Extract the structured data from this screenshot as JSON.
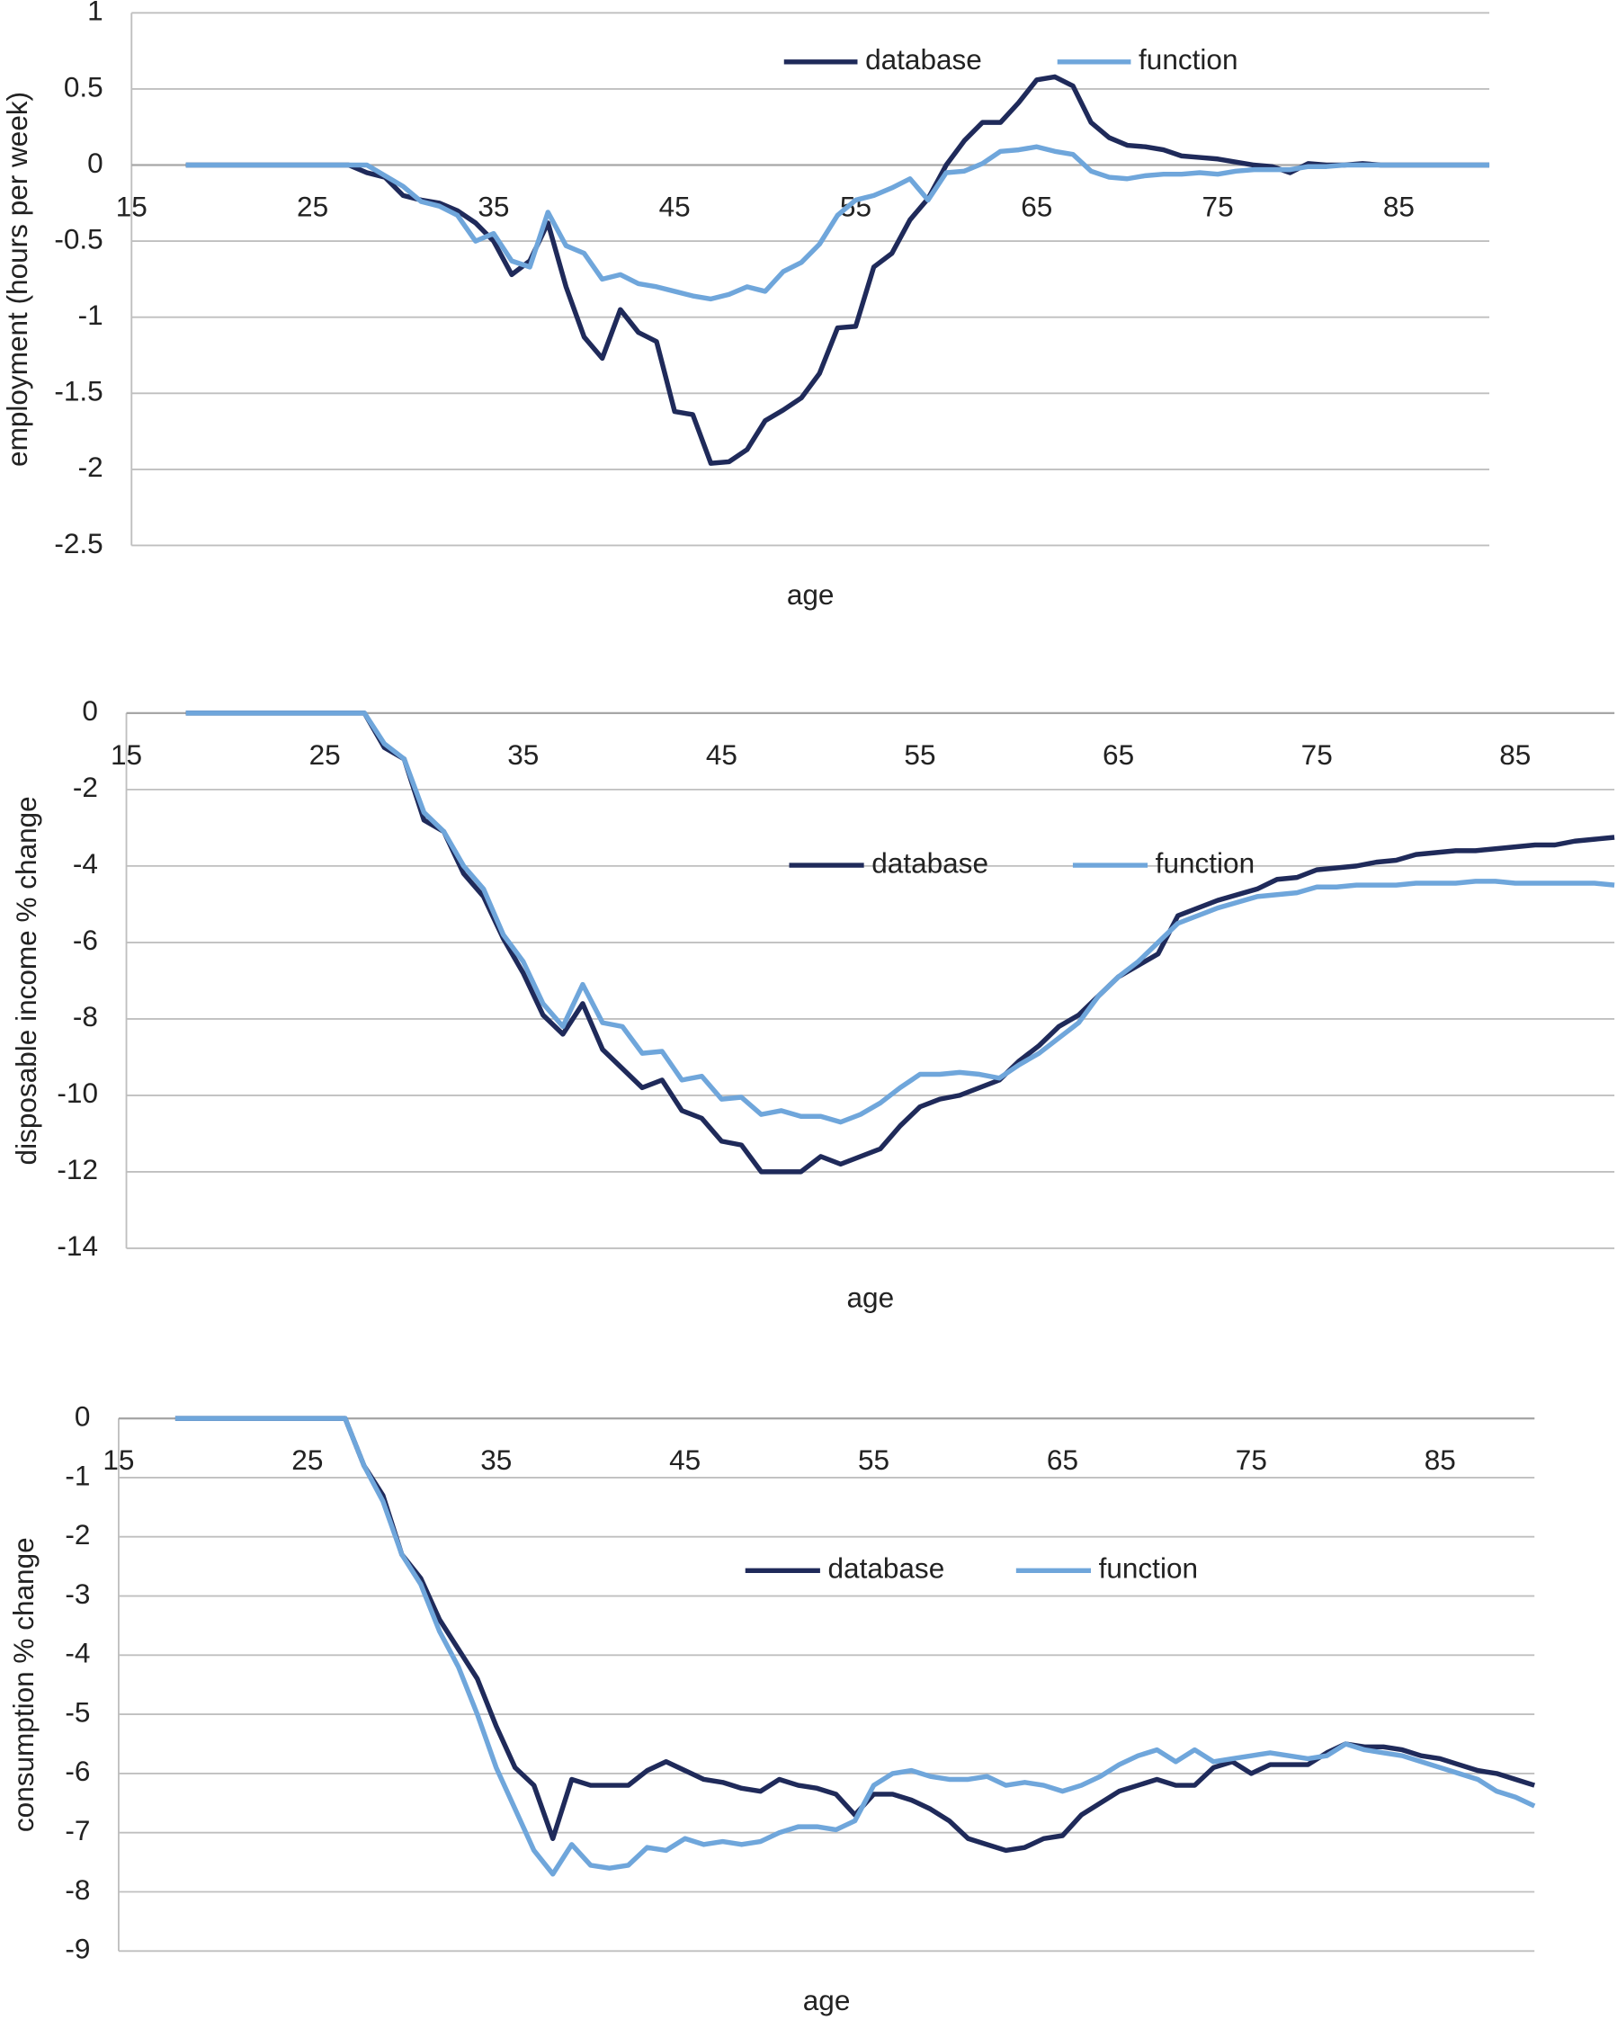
{
  "chart_data": [
    {
      "type": "line",
      "y_label": "employment (hours per week)",
      "x_label": "age",
      "x": [
        18,
        19,
        20,
        21,
        22,
        23,
        24,
        25,
        26,
        27,
        28,
        29,
        30,
        31,
        32,
        33,
        34,
        35,
        36,
        37,
        38,
        39,
        40,
        41,
        42,
        43,
        44,
        45,
        46,
        47,
        48,
        49,
        50,
        51,
        52,
        53,
        54,
        55,
        56,
        57,
        58,
        59,
        60,
        61,
        62,
        63,
        64,
        65,
        66,
        67,
        68,
        69,
        70,
        71,
        72,
        73,
        74,
        75,
        76,
        77,
        78,
        79,
        80,
        81,
        82,
        83,
        84,
        85,
        86,
        87,
        88,
        89,
        90
      ],
      "series": [
        {
          "name": "database",
          "color": "#1f2a5a",
          "values": [
            0,
            0,
            0,
            0,
            0,
            0,
            0,
            0,
            0,
            0,
            -0.05,
            -0.08,
            -0.2,
            -0.23,
            -0.25,
            -0.3,
            -0.38,
            -0.5,
            -0.72,
            -0.63,
            -0.38,
            -0.8,
            -1.13,
            -1.27,
            -0.95,
            -1.1,
            -1.16,
            -1.62,
            -1.64,
            -1.96,
            -1.95,
            -1.87,
            -1.68,
            -1.61,
            -1.53,
            -1.37,
            -1.07,
            -1.06,
            -0.67,
            -0.58,
            -0.36,
            -0.22,
            0,
            0.16,
            0.28,
            0.28,
            0.41,
            0.56,
            0.58,
            0.52,
            0.28,
            0.18,
            0.13,
            0.12,
            0.1,
            0.06,
            0.05,
            0.04,
            0.02,
            0,
            -0.01,
            -0.05,
            0.01,
            0,
            0,
            0.01,
            0,
            0,
            0,
            0,
            0,
            0,
            0
          ]
        },
        {
          "name": "function",
          "color": "#6fa6db",
          "values": [
            0,
            0,
            0,
            0,
            0,
            0,
            0,
            0,
            0,
            0,
            0,
            -0.07,
            -0.14,
            -0.24,
            -0.27,
            -0.33,
            -0.5,
            -0.45,
            -0.63,
            -0.67,
            -0.31,
            -0.53,
            -0.58,
            -0.75,
            -0.72,
            -0.78,
            -0.8,
            -0.83,
            -0.86,
            -0.88,
            -0.85,
            -0.8,
            -0.83,
            -0.7,
            -0.64,
            -0.52,
            -0.33,
            -0.23,
            -0.2,
            -0.15,
            -0.09,
            -0.23,
            -0.05,
            -0.04,
            0.01,
            0.09,
            0.1,
            0.12,
            0.09,
            0.07,
            -0.04,
            -0.08,
            -0.09,
            -0.07,
            -0.06,
            -0.06,
            -0.05,
            -0.06,
            -0.04,
            -0.03,
            -0.03,
            -0.03,
            -0.01,
            -0.01,
            0,
            0,
            0,
            0,
            0,
            0,
            0,
            0,
            0
          ]
        }
      ],
      "xlim": [
        15,
        90
      ],
      "ylim": [
        -2.5,
        1
      ],
      "xticks": [
        15,
        25,
        35,
        45,
        55,
        65,
        75,
        85
      ],
      "yticks": [
        -2.5,
        -2,
        -1.5,
        -1,
        -0.5,
        0,
        0.5,
        1
      ],
      "grid": true
    },
    {
      "type": "line",
      "y_label": "disposable income % change",
      "x_label": "age",
      "x": [
        18,
        19,
        20,
        21,
        22,
        23,
        24,
        25,
        26,
        27,
        28,
        29,
        30,
        31,
        32,
        33,
        34,
        35,
        36,
        37,
        38,
        39,
        40,
        41,
        42,
        43,
        44,
        45,
        46,
        47,
        48,
        49,
        50,
        51,
        52,
        53,
        54,
        55,
        56,
        57,
        58,
        59,
        60,
        61,
        62,
        63,
        64,
        65,
        66,
        67,
        68,
        69,
        70,
        71,
        72,
        73,
        74,
        75,
        76,
        77,
        78,
        79,
        80,
        81,
        82,
        83,
        84,
        85,
        86,
        87,
        88,
        89,
        90
      ],
      "series": [
        {
          "name": "database",
          "color": "#1f2a5a",
          "values": [
            0,
            0,
            0,
            0,
            0,
            0,
            0,
            0,
            0,
            0,
            -0.9,
            -1.2,
            -2.8,
            -3.1,
            -4.2,
            -4.8,
            -5.9,
            -6.8,
            -7.9,
            -8.4,
            -7.6,
            -8.8,
            -9.3,
            -9.8,
            -9.6,
            -10.4,
            -10.6,
            -11.2,
            -11.3,
            -12,
            -12,
            -12,
            -11.6,
            -11.8,
            -11.6,
            -11.4,
            -10.8,
            -10.3,
            -10.1,
            -10,
            -9.8,
            -9.6,
            -9.1,
            -8.7,
            -8.2,
            -7.9,
            -7.4,
            -6.9,
            -6.6,
            -6.3,
            -5.3,
            -5.1,
            -4.9,
            -4.75,
            -4.6,
            -4.35,
            -4.3,
            -4.1,
            -4.05,
            -4,
            -3.9,
            -3.85,
            -3.7,
            -3.65,
            -3.6,
            -3.6,
            -3.55,
            -3.5,
            -3.45,
            -3.45,
            -3.35,
            -3.3,
            -3.25
          ]
        },
        {
          "name": "function",
          "color": "#6fa6db",
          "values": [
            0,
            0,
            0,
            0,
            0,
            0,
            0,
            0,
            0,
            0,
            -0.8,
            -1.2,
            -2.6,
            -3.1,
            -4,
            -4.6,
            -5.8,
            -6.5,
            -7.6,
            -8.2,
            -7.1,
            -8.1,
            -8.2,
            -8.9,
            -8.85,
            -9.6,
            -9.5,
            -10.1,
            -10.05,
            -10.5,
            -10.4,
            -10.55,
            -10.55,
            -10.7,
            -10.5,
            -10.2,
            -9.8,
            -9.45,
            -9.45,
            -9.4,
            -9.45,
            -9.55,
            -9.2,
            -8.9,
            -8.5,
            -8.1,
            -7.4,
            -6.9,
            -6.5,
            -6,
            -5.5,
            -5.3,
            -5.1,
            -4.95,
            -4.8,
            -4.75,
            -4.7,
            -4.55,
            -4.55,
            -4.5,
            -4.5,
            -4.5,
            -4.45,
            -4.45,
            -4.45,
            -4.4,
            -4.4,
            -4.45,
            -4.45,
            -4.45,
            -4.45,
            -4.45,
            -4.5
          ]
        }
      ],
      "xlim": [
        15,
        90
      ],
      "ylim": [
        -14,
        0
      ],
      "xticks": [
        15,
        25,
        35,
        45,
        55,
        65,
        75,
        85
      ],
      "yticks": [
        -14,
        -12,
        -10,
        -8,
        -6,
        -4,
        -2,
        0
      ],
      "grid": true
    },
    {
      "type": "line",
      "y_label": "consumption % change",
      "x_label": "age",
      "x": [
        18,
        19,
        20,
        21,
        22,
        23,
        24,
        25,
        26,
        27,
        28,
        29,
        30,
        31,
        32,
        33,
        34,
        35,
        36,
        37,
        38,
        39,
        40,
        41,
        42,
        43,
        44,
        45,
        46,
        47,
        48,
        49,
        50,
        51,
        52,
        53,
        54,
        55,
        56,
        57,
        58,
        59,
        60,
        61,
        62,
        63,
        64,
        65,
        66,
        67,
        68,
        69,
        70,
        71,
        72,
        73,
        74,
        75,
        76,
        77,
        78,
        79,
        80,
        81,
        82,
        83,
        84,
        85,
        86,
        87,
        88,
        89,
        90
      ],
      "series": [
        {
          "name": "database",
          "color": "#1f2a5a",
          "values": [
            0,
            0,
            0,
            0,
            0,
            0,
            0,
            0,
            0,
            0,
            -0.8,
            -1.3,
            -2.3,
            -2.7,
            -3.4,
            -3.9,
            -4.4,
            -5.2,
            -5.9,
            -6.2,
            -7.1,
            -6.1,
            -6.2,
            -6.2,
            -6.2,
            -5.95,
            -5.8,
            -5.95,
            -6.1,
            -6.15,
            -6.25,
            -6.3,
            -6.1,
            -6.2,
            -6.25,
            -6.35,
            -6.7,
            -6.35,
            -6.35,
            -6.45,
            -6.6,
            -6.8,
            -7.1,
            -7.2,
            -7.3,
            -7.25,
            -7.1,
            -7.05,
            -6.7,
            -6.5,
            -6.3,
            -6.2,
            -6.1,
            -6.2,
            -6.2,
            -5.9,
            -5.8,
            -6,
            -5.85,
            -5.85,
            -5.85,
            -5.65,
            -5.5,
            -5.55,
            -5.55,
            -5.6,
            -5.7,
            -5.75,
            -5.85,
            -5.95,
            -6,
            -6.1,
            -6.2
          ]
        },
        {
          "name": "function",
          "color": "#6fa6db",
          "values": [
            0,
            0,
            0,
            0,
            0,
            0,
            0,
            0,
            0,
            0,
            -0.8,
            -1.4,
            -2.3,
            -2.8,
            -3.6,
            -4.2,
            -5,
            -5.9,
            -6.6,
            -7.3,
            -7.7,
            -7.2,
            -7.55,
            -7.6,
            -7.55,
            -7.25,
            -7.3,
            -7.1,
            -7.2,
            -7.15,
            -7.2,
            -7.15,
            -7,
            -6.9,
            -6.9,
            -6.95,
            -6.8,
            -6.2,
            -6,
            -5.95,
            -6.05,
            -6.1,
            -6.1,
            -6.05,
            -6.2,
            -6.15,
            -6.2,
            -6.3,
            -6.2,
            -6.05,
            -5.85,
            -5.7,
            -5.6,
            -5.8,
            -5.6,
            -5.8,
            -5.75,
            -5.7,
            -5.65,
            -5.7,
            -5.75,
            -5.7,
            -5.5,
            -5.6,
            -5.65,
            -5.7,
            -5.8,
            -5.9,
            -6,
            -6.1,
            -6.3,
            -6.4,
            -6.55
          ]
        }
      ],
      "xlim": [
        15,
        90
      ],
      "ylim": [
        -9,
        0
      ],
      "xticks": [
        15,
        25,
        35,
        45,
        55,
        65,
        75,
        85
      ],
      "yticks": [
        -9,
        -8,
        -7,
        -6,
        -5,
        -4,
        -3,
        -2,
        -1,
        0
      ],
      "grid": true
    }
  ]
}
